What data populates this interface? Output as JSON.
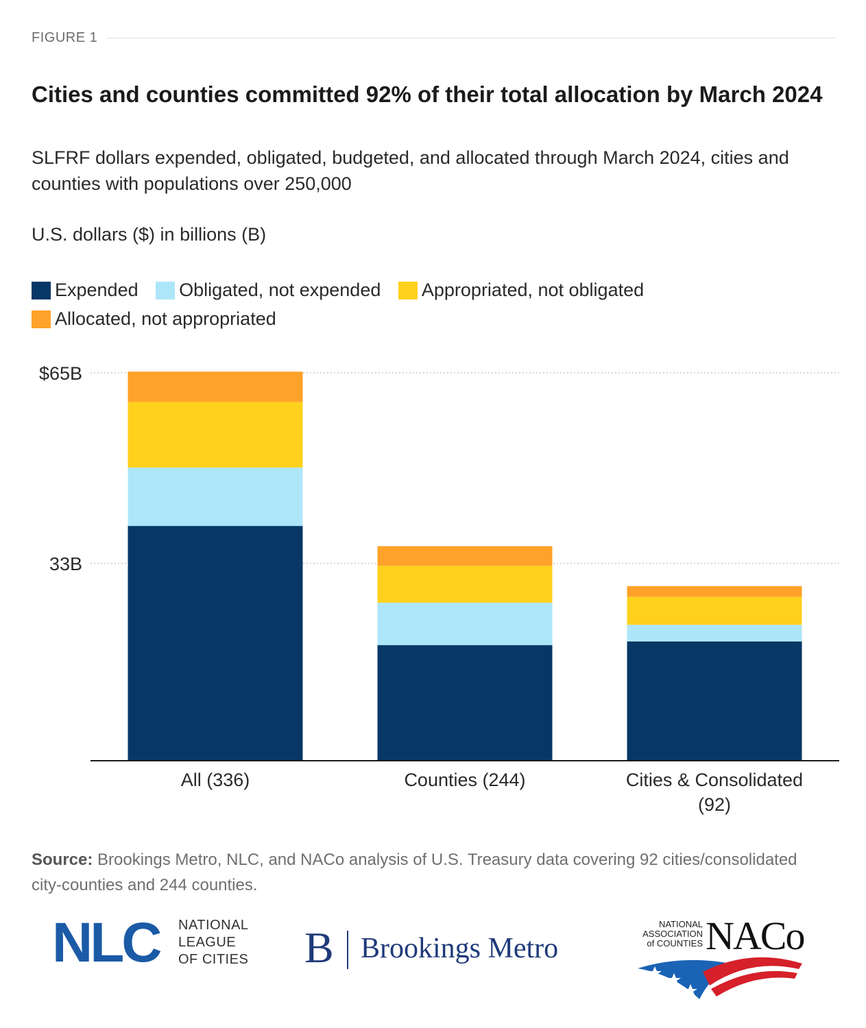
{
  "figure_label": "FIGURE 1",
  "title": "Cities and counties committed 92% of their total allocation by March 2024",
  "subtitle": "SLFRF dollars expended, obligated, budgeted, and allocated through March 2024, cities and counties with populations over 250,000",
  "units_label": "U.S. dollars ($) in billions (B)",
  "legend": [
    {
      "label": "Expended",
      "color": "#063766"
    },
    {
      "label": "Obligated, not expended",
      "color": "#aee6f9"
    },
    {
      "label": "Appropriated, not obligated",
      "color": "#ffd11d"
    },
    {
      "label": "Allocated, not appropriated",
      "color": "#ffa229"
    }
  ],
  "chart_data": {
    "type": "bar",
    "stacked": true,
    "categories": [
      "All (336)",
      "Counties (244)",
      "Cities & Consolidated (92)"
    ],
    "series": [
      {
        "name": "Expended",
        "color": "#063766",
        "values": [
          39.3,
          19.3,
          19.9
        ]
      },
      {
        "name": "Obligated, not expended",
        "color": "#aee6f9",
        "values": [
          9.8,
          7.1,
          2.8
        ]
      },
      {
        "name": "Appropriated, not obligated",
        "color": "#ffd11d",
        "values": [
          11.0,
          6.2,
          4.7
        ]
      },
      {
        "name": "Allocated, not appropriated",
        "color": "#ffa229",
        "values": [
          5.1,
          3.3,
          1.8
        ]
      }
    ],
    "yticks": [
      {
        "value": 65,
        "label": "$65B"
      },
      {
        "value": 33,
        "label": "33B"
      }
    ],
    "ylim": [
      0,
      65
    ],
    "grid": "dotted horizontal",
    "legend_position": "top-left"
  },
  "source": {
    "label": "Source:",
    "text": "Brookings Metro, NLC, and NACo analysis of U.S. Treasury data covering 92 cities/consolidated city-counties and 244 counties."
  },
  "logos": {
    "nlc": {
      "mark": "NLC",
      "line1": "NATIONAL",
      "line2": "LEAGUE",
      "line3": "OF CITIES"
    },
    "brookings": {
      "mark": "B",
      "name": "Brookings Metro"
    },
    "naco": {
      "line1": "NATIONAL",
      "line2": "ASSOCIATION",
      "line3": "of COUNTIES",
      "mark": "NACo"
    }
  }
}
